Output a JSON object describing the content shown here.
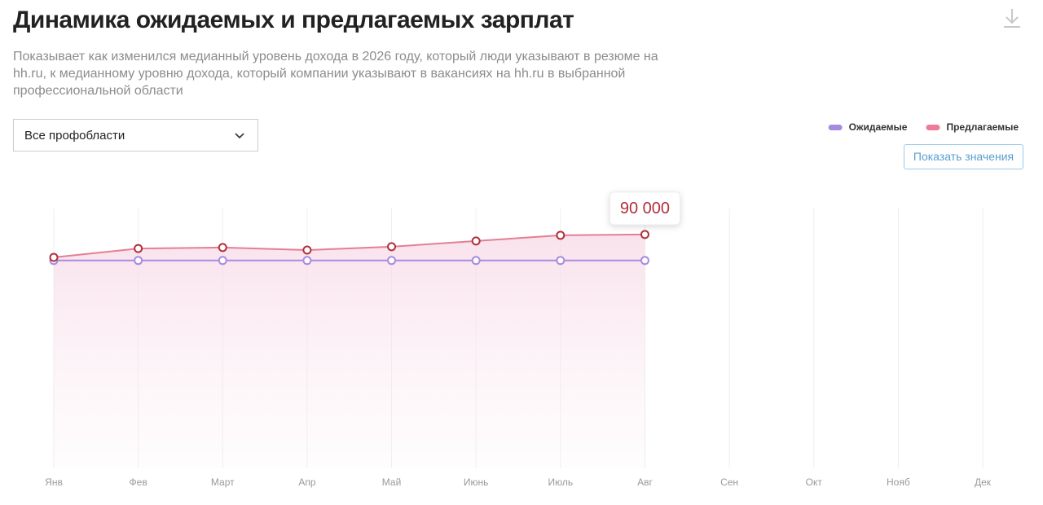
{
  "header": {
    "title": "Динамика ожидаемых и предлагаемых зарплат",
    "subtitle": "Показывает как изменился медианный уровень дохода в 2026 году, который люди указывают в резюме на hh.ru, к медианному уровню дохода, который компании указывают в вакансиях на hh.ru в выбранной профессиональной области"
  },
  "filter": {
    "label": "Все профобласти"
  },
  "button": {
    "label": "Показать значения"
  },
  "chart_data": {
    "type": "line",
    "categories": [
      "Янв",
      "Фев",
      "Март",
      "Апр",
      "Май",
      "Июнь",
      "Июль",
      "Авг",
      "Сен",
      "Окт",
      "Нояб",
      "Дек"
    ],
    "series": [
      {
        "name": "Ожидаемые",
        "color": "#a98be0",
        "legend_color": "#a48ae0",
        "values": [
          80000,
          80000,
          80000,
          80000,
          80000,
          80000,
          80000,
          80000,
          null,
          null,
          null,
          null
        ]
      },
      {
        "name": "Предлагаемые",
        "color": "#e47f93",
        "marker_color": "#b0303a",
        "legend_color": "#ee7a9a",
        "values": [
          81200,
          84600,
          85000,
          84000,
          85300,
          87500,
          89700,
          90000,
          null,
          null,
          null,
          null
        ],
        "value_labels": [
          null,
          null,
          null,
          null,
          null,
          null,
          null,
          "90 000",
          null,
          null,
          null,
          null
        ]
      }
    ],
    "ylim": [
      0,
      100000
    ],
    "grid": true,
    "legend": "top-right"
  }
}
